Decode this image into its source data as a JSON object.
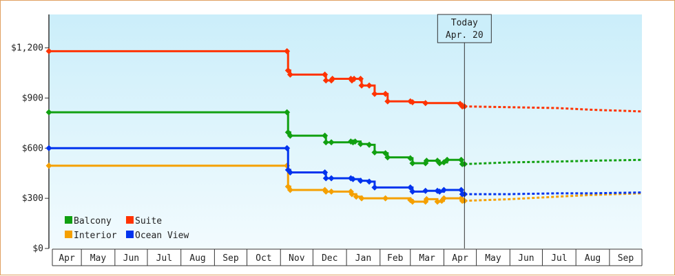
{
  "chart_data": {
    "type": "line",
    "title": "",
    "xlabel": "",
    "ylabel": "",
    "ylim": [
      0,
      1400
    ],
    "yticks": [
      0,
      300,
      600,
      900,
      1200
    ],
    "ytick_labels": [
      "$0",
      "$300",
      "$600",
      "$900",
      "$1,200"
    ],
    "month_labels": [
      "Apr",
      "May",
      "Jun",
      "Jul",
      "Aug",
      "Sep",
      "Oct",
      "Nov",
      "Dec",
      "Jan",
      "Feb",
      "Mar",
      "Apr",
      "May",
      "Jun",
      "Jul",
      "Aug",
      "Sep"
    ],
    "x_start": "2022-04-01",
    "x_end": "2023-10-01",
    "today": {
      "date": "2023-04-20",
      "line1": "Today",
      "line2": "Apr. 20"
    },
    "legend_position": "bottom-left",
    "grid": false,
    "series": [
      {
        "name": "Balcony",
        "color": "#11a011",
        "history": [
          [
            "2022-04-01",
            815
          ],
          [
            "2022-11-07",
            815
          ],
          [
            "2022-11-08",
            695
          ],
          [
            "2022-11-10",
            675
          ],
          [
            "2022-12-12",
            675
          ],
          [
            "2022-12-13",
            635
          ],
          [
            "2022-12-18",
            635
          ],
          [
            "2023-01-05",
            640
          ],
          [
            "2023-01-07",
            635
          ],
          [
            "2023-01-09",
            640
          ],
          [
            "2023-01-14",
            625
          ],
          [
            "2023-01-22",
            620
          ],
          [
            "2023-01-27",
            575
          ],
          [
            "2023-02-06",
            570
          ],
          [
            "2023-02-08",
            545
          ],
          [
            "2023-03-01",
            540
          ],
          [
            "2023-03-03",
            510
          ],
          [
            "2023-03-15",
            510
          ],
          [
            "2023-03-16",
            525
          ],
          [
            "2023-03-26",
            525
          ],
          [
            "2023-03-28",
            510
          ],
          [
            "2023-04-01",
            515
          ],
          [
            "2023-04-04",
            530
          ],
          [
            "2023-04-17",
            530
          ],
          [
            "2023-04-18",
            505
          ],
          [
            "2023-04-20",
            505
          ]
        ],
        "forecast": [
          [
            "2023-04-20",
            505
          ],
          [
            "2023-06-01",
            515
          ],
          [
            "2023-07-15",
            520
          ],
          [
            "2023-08-15",
            525
          ],
          [
            "2023-09-30",
            530
          ]
        ]
      },
      {
        "name": "Suite",
        "color": "#ff3300",
        "history": [
          [
            "2022-04-01",
            1180
          ],
          [
            "2022-11-07",
            1180
          ],
          [
            "2022-11-08",
            1065
          ],
          [
            "2022-11-10",
            1040
          ],
          [
            "2022-12-12",
            1040
          ],
          [
            "2022-12-13",
            1005
          ],
          [
            "2022-12-18",
            1005
          ],
          [
            "2022-12-19",
            1015
          ],
          [
            "2023-01-05",
            1015
          ],
          [
            "2023-01-06",
            1005
          ],
          [
            "2023-01-08",
            1015
          ],
          [
            "2023-01-14",
            1015
          ],
          [
            "2023-01-15",
            975
          ],
          [
            "2023-01-22",
            975
          ],
          [
            "2023-01-27",
            925
          ],
          [
            "2023-02-06",
            925
          ],
          [
            "2023-02-08",
            880
          ],
          [
            "2023-03-01",
            880
          ],
          [
            "2023-03-03",
            875
          ],
          [
            "2023-03-15",
            870
          ],
          [
            "2023-04-16",
            865
          ],
          [
            "2023-04-18",
            850
          ],
          [
            "2023-04-20",
            850
          ]
        ],
        "forecast": [
          [
            "2023-04-20",
            850
          ],
          [
            "2023-06-01",
            845
          ],
          [
            "2023-07-15",
            840
          ],
          [
            "2023-08-15",
            830
          ],
          [
            "2023-09-30",
            820
          ]
        ]
      },
      {
        "name": "Interior",
        "color": "#f5a000",
        "history": [
          [
            "2022-04-01",
            495
          ],
          [
            "2022-11-07",
            495
          ],
          [
            "2022-11-08",
            370
          ],
          [
            "2022-11-10",
            350
          ],
          [
            "2022-12-12",
            350
          ],
          [
            "2022-12-13",
            340
          ],
          [
            "2022-12-18",
            340
          ],
          [
            "2023-01-05",
            340
          ],
          [
            "2023-01-06",
            325
          ],
          [
            "2023-01-10",
            310
          ],
          [
            "2023-01-15",
            300
          ],
          [
            "2023-02-06",
            300
          ],
          [
            "2023-03-01",
            290
          ],
          [
            "2023-03-03",
            280
          ],
          [
            "2023-03-15",
            280
          ],
          [
            "2023-03-16",
            295
          ],
          [
            "2023-03-26",
            280
          ],
          [
            "2023-03-30",
            285
          ],
          [
            "2023-04-01",
            300
          ],
          [
            "2023-04-17",
            300
          ],
          [
            "2023-04-18",
            285
          ],
          [
            "2023-04-20",
            285
          ]
        ],
        "forecast": [
          [
            "2023-04-20",
            285
          ],
          [
            "2023-06-01",
            295
          ],
          [
            "2023-07-15",
            310
          ],
          [
            "2023-08-15",
            320
          ],
          [
            "2023-09-30",
            330
          ]
        ]
      },
      {
        "name": "Ocean View",
        "color": "#0033ee",
        "history": [
          [
            "2022-04-01",
            600
          ],
          [
            "2022-11-07",
            600
          ],
          [
            "2022-11-08",
            470
          ],
          [
            "2022-11-10",
            455
          ],
          [
            "2022-12-12",
            455
          ],
          [
            "2022-12-13",
            420
          ],
          [
            "2022-12-18",
            420
          ],
          [
            "2023-01-05",
            420
          ],
          [
            "2023-01-07",
            415
          ],
          [
            "2023-01-14",
            405
          ],
          [
            "2023-01-22",
            400
          ],
          [
            "2023-01-27",
            365
          ],
          [
            "2023-03-01",
            365
          ],
          [
            "2023-03-03",
            340
          ],
          [
            "2023-03-15",
            345
          ],
          [
            "2023-03-26",
            345
          ],
          [
            "2023-03-28",
            340
          ],
          [
            "2023-04-01",
            350
          ],
          [
            "2023-04-17",
            350
          ],
          [
            "2023-04-18",
            325
          ],
          [
            "2023-04-20",
            325
          ]
        ],
        "forecast": [
          [
            "2023-04-20",
            325
          ],
          [
            "2023-06-01",
            325
          ],
          [
            "2023-07-15",
            330
          ],
          [
            "2023-08-15",
            330
          ],
          [
            "2023-09-30",
            335
          ]
        ]
      }
    ]
  }
}
